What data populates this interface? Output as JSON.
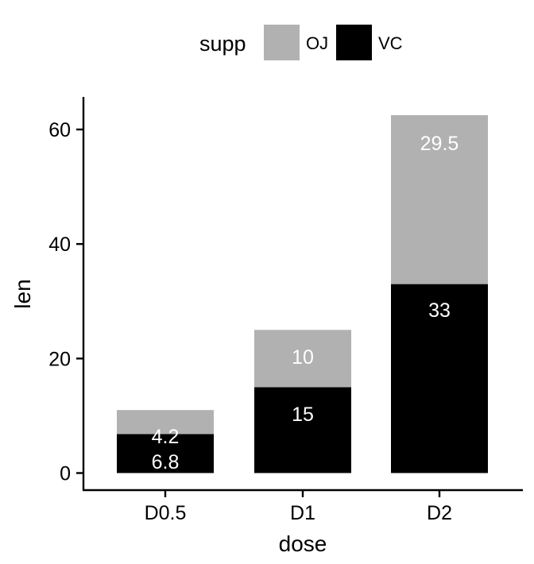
{
  "chart_data": {
    "type": "bar",
    "stacked": true,
    "categories": [
      "D0.5",
      "D1",
      "D2"
    ],
    "series": [
      {
        "name": "VC",
        "values": [
          6.8,
          15,
          33
        ],
        "labels": [
          "6.8",
          "15",
          "33"
        ]
      },
      {
        "name": "OJ",
        "values": [
          4.2,
          10,
          29.5
        ],
        "labels": [
          "4.2",
          "10",
          "29.5"
        ]
      }
    ],
    "xlabel": "dose",
    "ylabel": "len",
    "ylim": [
      -2.9,
      66
    ],
    "yticks": [
      0,
      20,
      40,
      60
    ],
    "ytick_labels": [
      "0",
      "20",
      "40",
      "60"
    ],
    "grid": false,
    "legend": {
      "title": "supp",
      "position": "top",
      "items": [
        {
          "name": "OJ",
          "color": "#b1b1b1"
        },
        {
          "name": "VC",
          "color": "#000000"
        }
      ]
    },
    "colors": {
      "OJ": "#b1b1b1",
      "VC": "#000000",
      "label": "#ffffff"
    }
  }
}
